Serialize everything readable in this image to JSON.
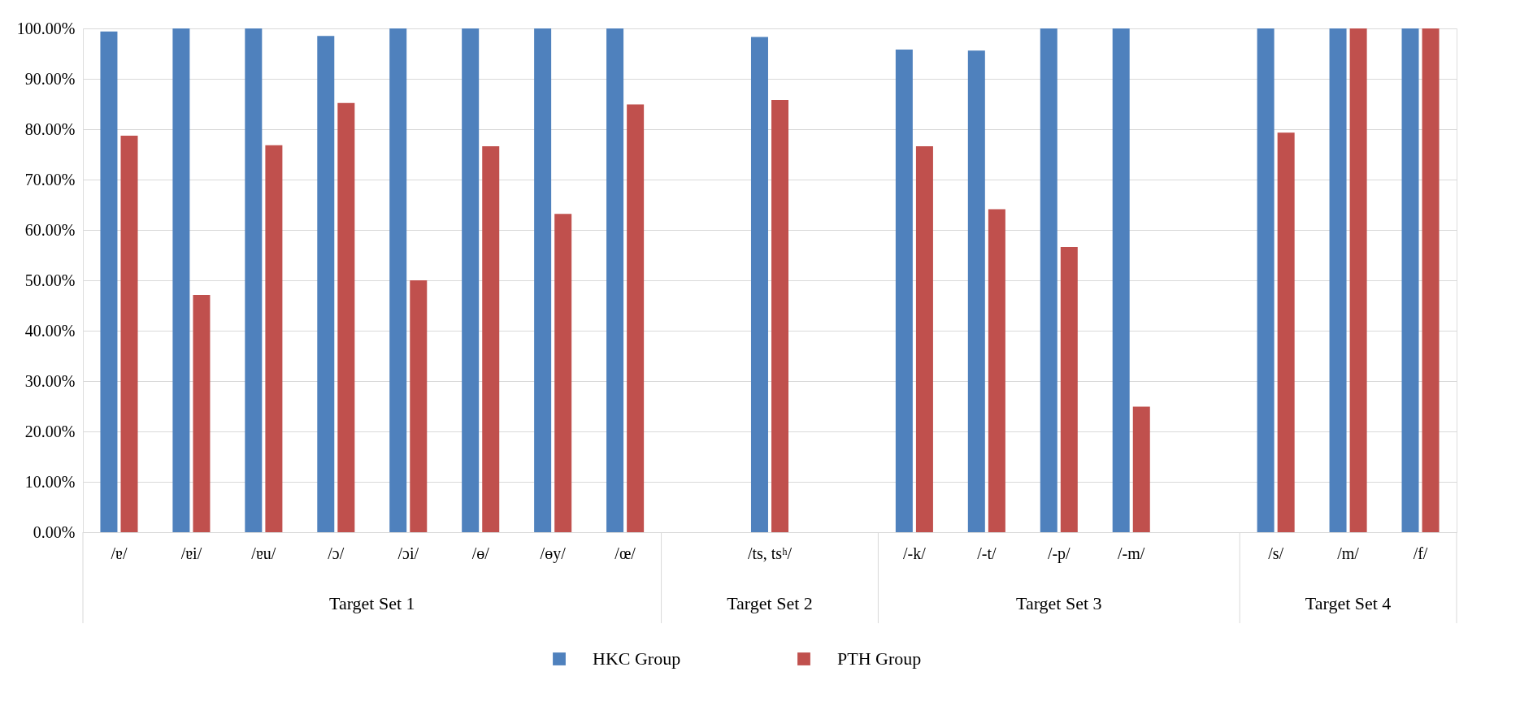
{
  "chart_data": {
    "type": "bar",
    "categories": [
      "/ɐ/",
      "/ɐi/",
      "/ɐu/",
      "/ɔ/",
      "/ɔi/",
      "/ɵ/",
      "/ɵy/",
      "/œ/",
      null,
      "/ts, tsʰ/",
      null,
      "/-k/",
      "/-t/",
      "/-p/",
      "/-m/",
      null,
      "/s/",
      "/m/",
      "/f/"
    ],
    "series": [
      {
        "name": "HKC Group",
        "color": "#4f81bd",
        "values": [
          99.4,
          100,
          100,
          98.5,
          100,
          100,
          100,
          100,
          null,
          98.3,
          null,
          95.8,
          95.6,
          100,
          100,
          null,
          100,
          100,
          100
        ]
      },
      {
        "name": "PTH Group",
        "color": "#c0504d",
        "values": [
          78.7,
          47.1,
          76.8,
          85.2,
          50.0,
          76.6,
          63.2,
          84.9,
          null,
          85.8,
          null,
          76.6,
          64.1,
          56.6,
          24.9,
          null,
          79.3,
          100,
          100
        ]
      }
    ],
    "ylim": [
      0,
      100
    ],
    "yticks": [
      {
        "value": 0,
        "label": "0.00%"
      },
      {
        "value": 10,
        "label": "10.00%"
      },
      {
        "value": 20,
        "label": "20.00%"
      },
      {
        "value": 30,
        "label": "30.00%"
      },
      {
        "value": 40,
        "label": "40.00%"
      },
      {
        "value": 50,
        "label": "50.00%"
      },
      {
        "value": 60,
        "label": "60.00%"
      },
      {
        "value": 70,
        "label": "70.00%"
      },
      {
        "value": 80,
        "label": "80.00%"
      },
      {
        "value": 90,
        "label": "90.00%"
      },
      {
        "value": 100,
        "label": "100.00%"
      }
    ],
    "annotations": [
      "Target Set 1",
      "Target Set 2",
      "Target Set 3",
      "Target Set 4"
    ],
    "grid": "y",
    "legend": "bottom"
  }
}
